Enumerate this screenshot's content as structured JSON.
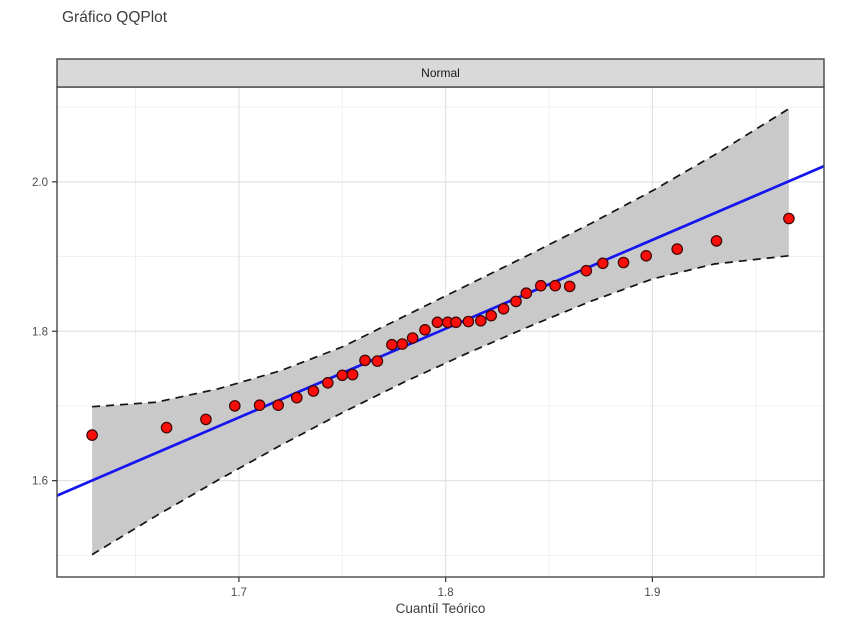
{
  "title": "Gráfico QQPlot",
  "panel": {
    "strip_label": "Normal"
  },
  "axes": {
    "x_title": "Cuantíl Teórico",
    "x_tick_labels": [
      "1.7",
      "1.8",
      "1.9"
    ],
    "y_tick_labels": [
      "1.6",
      "1.8",
      "2.0"
    ]
  },
  "colors": {
    "strip_fill": "#d9d9d9",
    "strip_border": "#474747",
    "panel_border": "#474747",
    "grid_major": "#e3e3e3",
    "grid_minor": "#f0f0f0",
    "band_fill": "#c9c9c9",
    "band_dash": "#141414",
    "line_blue": "#1515ef",
    "point_fill": "#fa0e0a",
    "point_stroke": "#3d0503",
    "tick_label": "#4d4d4d",
    "title_text": "#3d3d3d"
  },
  "chart_data": {
    "type": "scatter",
    "title": "Gráfico QQPlot",
    "facet_label": "Normal",
    "xlabel": "Cuantíl Teórico",
    "ylabel": "",
    "xlim": [
      1.612,
      1.983
    ],
    "ylim": [
      1.471,
      2.127
    ],
    "x_major_ticks": [
      1.7,
      1.8,
      1.9
    ],
    "x_minor_ticks": [
      1.65,
      1.75,
      1.85,
      1.95
    ],
    "y_major_ticks": [
      1.6,
      1.8,
      2.0
    ],
    "y_minor_ticks": [
      1.5,
      1.7,
      1.9,
      2.1
    ],
    "grid": true,
    "legend_position": "none",
    "points": [
      [
        1.629,
        1.661
      ],
      [
        1.665,
        1.671
      ],
      [
        1.684,
        1.682
      ],
      [
        1.698,
        1.7
      ],
      [
        1.71,
        1.701
      ],
      [
        1.719,
        1.701
      ],
      [
        1.728,
        1.711
      ],
      [
        1.736,
        1.72
      ],
      [
        1.743,
        1.731
      ],
      [
        1.75,
        1.741
      ],
      [
        1.755,
        1.742
      ],
      [
        1.761,
        1.761
      ],
      [
        1.767,
        1.76
      ],
      [
        1.774,
        1.782
      ],
      [
        1.779,
        1.783
      ],
      [
        1.784,
        1.791
      ],
      [
        1.79,
        1.802
      ],
      [
        1.796,
        1.812
      ],
      [
        1.801,
        1.812
      ],
      [
        1.805,
        1.812
      ],
      [
        1.811,
        1.813
      ],
      [
        1.817,
        1.814
      ],
      [
        1.822,
        1.821
      ],
      [
        1.828,
        1.83
      ],
      [
        1.834,
        1.84
      ],
      [
        1.839,
        1.851
      ],
      [
        1.846,
        1.861
      ],
      [
        1.853,
        1.861
      ],
      [
        1.86,
        1.86
      ],
      [
        1.868,
        1.881
      ],
      [
        1.876,
        1.891
      ],
      [
        1.886,
        1.892
      ],
      [
        1.897,
        1.901
      ],
      [
        1.912,
        1.91
      ],
      [
        1.931,
        1.921
      ],
      [
        1.966,
        1.951
      ]
    ],
    "reference_line": {
      "x": [
        1.612,
        1.983
      ],
      "y": [
        1.58,
        2.021
      ]
    },
    "confidence_band": {
      "top": [
        [
          1.629,
          1.699
        ],
        [
          1.66,
          1.705
        ],
        [
          1.69,
          1.723
        ],
        [
          1.72,
          1.747
        ],
        [
          1.75,
          1.779
        ],
        [
          1.78,
          1.82
        ],
        [
          1.81,
          1.861
        ],
        [
          1.84,
          1.902
        ],
        [
          1.87,
          1.944
        ],
        [
          1.9,
          1.988
        ],
        [
          1.93,
          2.036
        ],
        [
          1.966,
          2.098
        ]
      ],
      "bottom": [
        [
          1.629,
          1.501
        ],
        [
          1.66,
          1.553
        ],
        [
          1.69,
          1.601
        ],
        [
          1.72,
          1.647
        ],
        [
          1.75,
          1.691
        ],
        [
          1.78,
          1.732
        ],
        [
          1.81,
          1.77
        ],
        [
          1.84,
          1.806
        ],
        [
          1.87,
          1.84
        ],
        [
          1.9,
          1.87
        ],
        [
          1.93,
          1.89
        ],
        [
          1.966,
          1.901
        ]
      ]
    }
  }
}
